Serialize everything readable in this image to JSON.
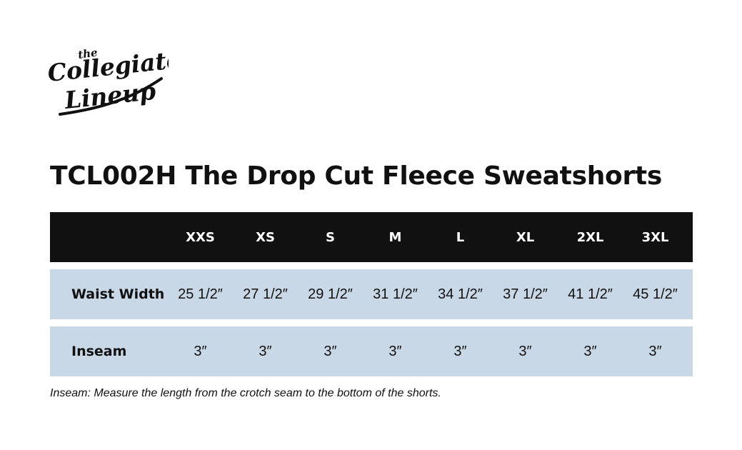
{
  "brand": {
    "logo_text_top": "the",
    "logo_text_mid": "Collegiate",
    "logo_text_bottom": "Lineup"
  },
  "title": "TCL002H The Drop Cut Fleece Sweatshorts",
  "table": {
    "header_label": "",
    "sizes": [
      "XXS",
      "XS",
      "S",
      "M",
      "L",
      "XL",
      "2XL",
      "3XL"
    ],
    "rows": [
      {
        "label": "Waist Width",
        "values": [
          "25 1/2″",
          "27 1/2″",
          "29 1/2″",
          "31 1/2″",
          "34 1/2″",
          "37 1/2″",
          "41 1/2″",
          "45 1/2″"
        ]
      },
      {
        "label": "Inseam",
        "values": [
          "3″",
          "3″",
          "3″",
          "3″",
          "3″",
          "3″",
          "3″",
          "3″"
        ]
      }
    ]
  },
  "footnote": "Inseam: Measure the length from the crotch seam to the bottom of the shorts.",
  "colors": {
    "header_bg": "#111111",
    "row_bg": "#c9d8e7",
    "text": "#111111"
  }
}
